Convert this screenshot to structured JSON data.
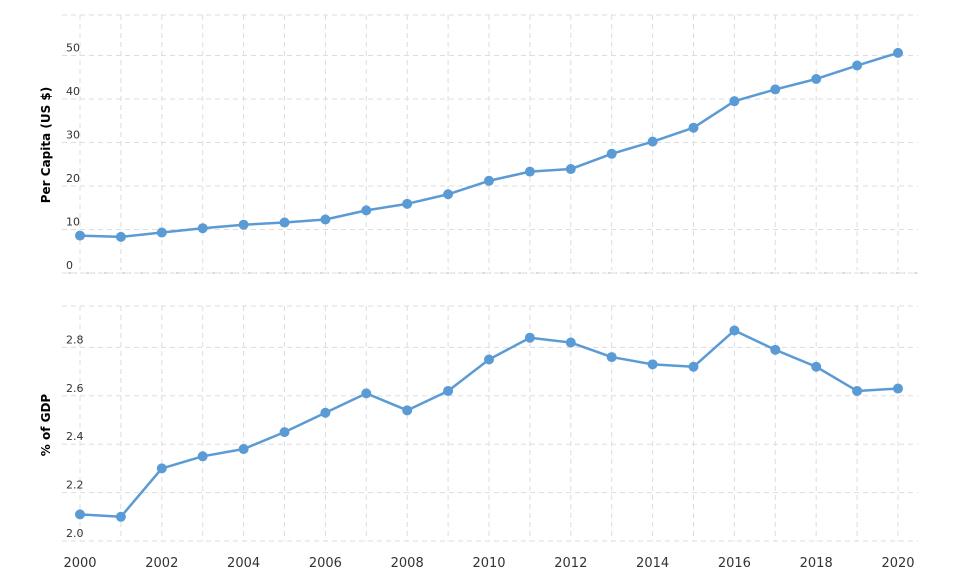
{
  "chart_data": [
    {
      "type": "line",
      "ylabel": "Per Capita (US $)",
      "ylim": [
        0,
        55
      ],
      "yticks": [
        0,
        10,
        20,
        30,
        40,
        50
      ],
      "grid": true,
      "color": "#5b9bd5",
      "x": [
        2000,
        2001,
        2002,
        2003,
        2004,
        2005,
        2006,
        2007,
        2008,
        2009,
        2010,
        2011,
        2012,
        2013,
        2014,
        2015,
        2016,
        2017,
        2018,
        2019,
        2020
      ],
      "values": [
        8.6,
        8.3,
        9.3,
        10.3,
        11.1,
        11.6,
        12.3,
        14.4,
        15.9,
        18.1,
        21.2,
        23.3,
        23.9,
        27.4,
        30.2,
        33.4,
        39.5,
        42.2,
        44.6,
        47.7,
        50.6
      ]
    },
    {
      "type": "line",
      "ylabel": "% of GDP",
      "ylim": [
        2.0,
        3.0
      ],
      "yticks": [
        "2.0",
        "2.2",
        "2.4",
        "2.6",
        "2.8"
      ],
      "grid": true,
      "color": "#5b9bd5",
      "x": [
        2000,
        2001,
        2002,
        2003,
        2004,
        2005,
        2006,
        2007,
        2008,
        2009,
        2010,
        2011,
        2012,
        2013,
        2014,
        2015,
        2016,
        2017,
        2018,
        2019,
        2020
      ],
      "values": [
        2.11,
        2.1,
        2.3,
        2.35,
        2.38,
        2.45,
        2.53,
        2.61,
        2.54,
        2.62,
        2.75,
        2.84,
        2.82,
        2.76,
        2.73,
        2.72,
        2.87,
        2.79,
        2.72,
        2.62,
        2.63
      ]
    }
  ],
  "xaxis": {
    "ticks": [
      2000,
      2002,
      2004,
      2006,
      2008,
      2010,
      2012,
      2014,
      2016,
      2018,
      2020
    ]
  }
}
